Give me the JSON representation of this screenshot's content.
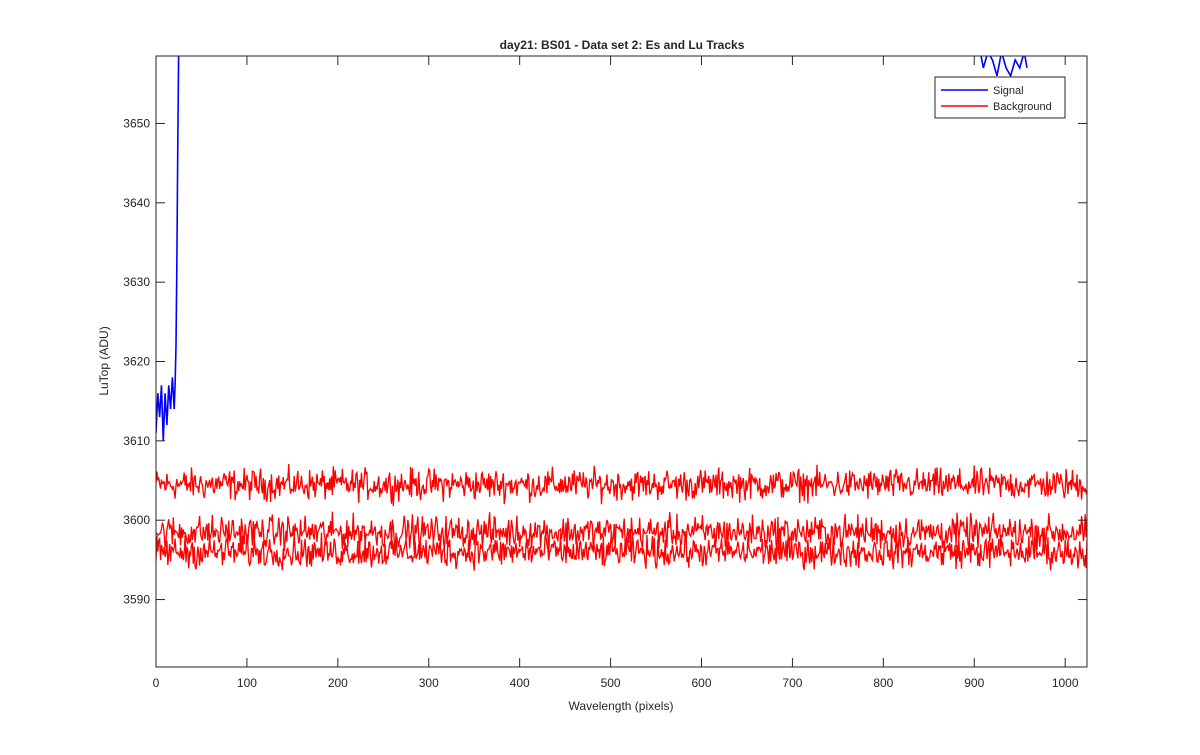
{
  "chart_data": {
    "type": "line",
    "title": "day21: BS01 - Data set 2: Es and Lu Tracks",
    "xlabel": "Wavelength (pixels)",
    "ylabel": "LuTop (ADU)",
    "xlim": [
      0,
      1024
    ],
    "ylim": [
      3581.5,
      3658.5
    ],
    "xticks": [
      0,
      100,
      200,
      300,
      400,
      500,
      600,
      700,
      800,
      900,
      1000
    ],
    "yticks": [
      3590,
      3600,
      3610,
      3620,
      3630,
      3640,
      3650
    ],
    "grid": false,
    "legend_position": "top-right",
    "series": [
      {
        "name": "Signal",
        "color": "#0000ff",
        "segments": [
          {
            "x": [
              0,
              2,
              4,
              6,
              8,
              10,
              12,
              14,
              16,
              18,
              20,
              21,
              22,
              23,
              24,
              25,
              26
            ],
            "y": [
              3611,
              3616,
              3613,
              3617,
              3610,
              3616,
              3612,
              3617,
              3614,
              3618,
              3614,
              3617,
              3622,
              3633,
              3648,
              3660,
              3665
            ]
          },
          {
            "x": [
              905,
              910,
              915,
              920,
              925,
              930,
              935,
              940,
              945,
              950,
              955,
              958
            ],
            "y": [
              3660,
              3657,
              3659,
              3658,
              3656,
              3659,
              3657,
              3656,
              3658,
              3657,
              3659,
              3657
            ]
          }
        ]
      },
      {
        "name": "Background",
        "color": "#ff0000",
        "bands": [
          {
            "center": 3604.5,
            "amplitude": 1.8
          },
          {
            "center": 3598.5,
            "amplitude": 1.9
          },
          {
            "center": 3596.0,
            "amplitude": 1.8
          }
        ],
        "x_range": [
          0,
          1024
        ],
        "y_range": [
          3591.5,
          3609
        ]
      }
    ]
  }
}
